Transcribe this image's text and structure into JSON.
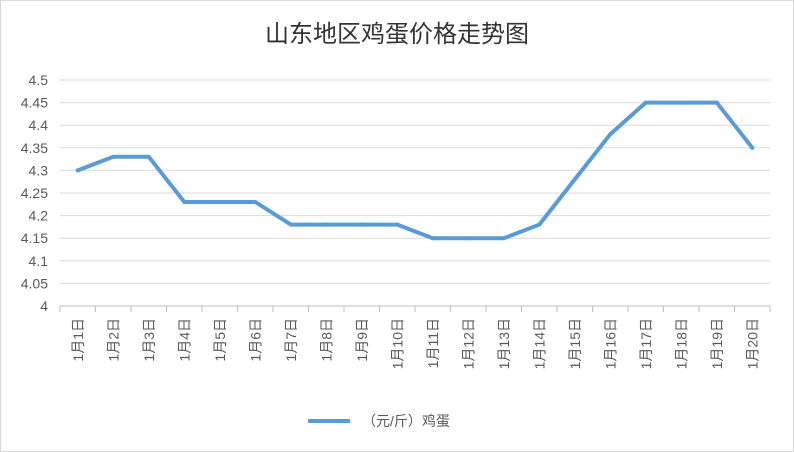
{
  "chart_data": {
    "type": "line",
    "title": "山东地区鸡蛋价格走势图",
    "xlabel": "",
    "ylabel": "",
    "ylim": [
      4,
      4.5
    ],
    "yticks": [
      "4",
      "4.05",
      "4.1",
      "4.15",
      "4.2",
      "4.25",
      "4.3",
      "4.35",
      "4.4",
      "4.45",
      "4.5"
    ],
    "grid": true,
    "legend_position": "bottom",
    "categories": [
      "1月1日",
      "1月2日",
      "1月3日",
      "1月4日",
      "1月5日",
      "1月6日",
      "1月7日",
      "1月8日",
      "1月9日",
      "1月10日",
      "1月11日",
      "1月12日",
      "1月13日",
      "1月14日",
      "1月15日",
      "1月16日",
      "1月17日",
      "1月18日",
      "1月19日",
      "1月20日"
    ],
    "series": [
      {
        "name": "（元/斤）鸡蛋",
        "color": "#5b9bd5",
        "values": [
          4.3,
          4.33,
          4.33,
          4.23,
          4.23,
          4.23,
          4.18,
          4.18,
          4.18,
          4.18,
          4.15,
          4.15,
          4.15,
          4.18,
          4.28,
          4.38,
          4.45,
          4.45,
          4.45,
          4.35
        ]
      }
    ]
  }
}
